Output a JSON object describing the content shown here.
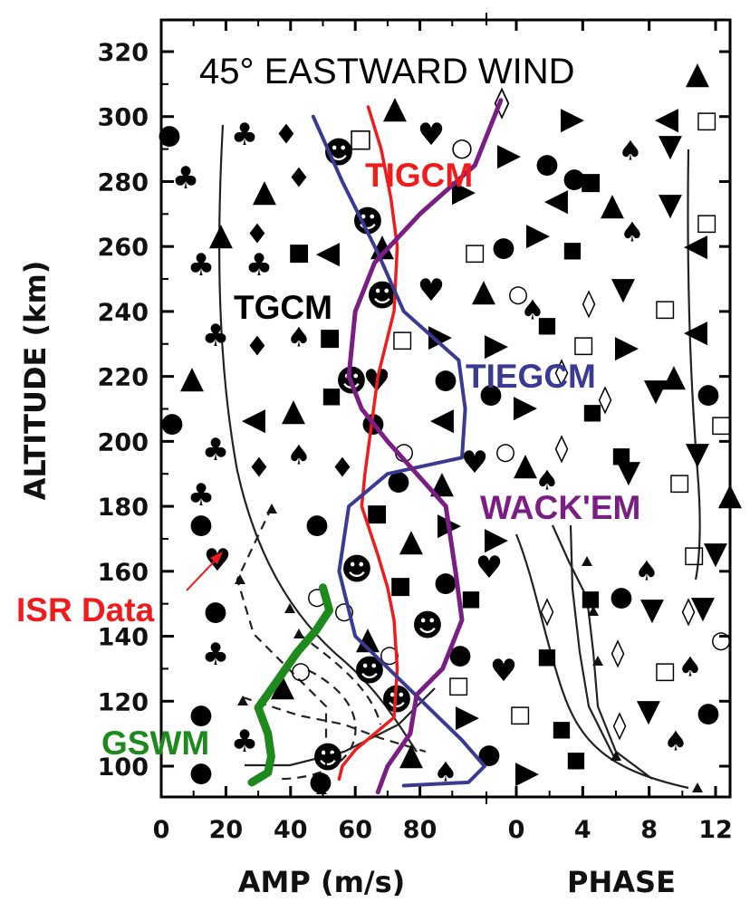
{
  "chart_data": {
    "type": "line",
    "title": "45° EASTWARD WIND",
    "ylabel": "ALTITUDE (km)",
    "ylim": [
      90,
      325
    ],
    "y_ticks": [
      100,
      120,
      140,
      160,
      180,
      200,
      220,
      240,
      260,
      280,
      300,
      320
    ],
    "amp_axis": {
      "label": "AMP (m/s)",
      "xlim": [
        0,
        100
      ],
      "ticks": [
        0,
        20,
        40,
        60,
        80
      ]
    },
    "phase_axis": {
      "label": "PHASE",
      "xlim": [
        -2,
        14
      ],
      "ticks": [
        0,
        4,
        8,
        12
      ]
    },
    "annotations": {
      "isr_data": "ISR Data"
    },
    "series": [
      {
        "name": "TIGCM",
        "color": "#ee1c1c",
        "panel": "amp",
        "points": [
          [
            55,
            96
          ],
          [
            56,
            100
          ],
          [
            60,
            105
          ],
          [
            72,
            115
          ],
          [
            73,
            130
          ],
          [
            72,
            145
          ],
          [
            70,
            155
          ],
          [
            67,
            165
          ],
          [
            62,
            180
          ],
          [
            63,
            190
          ],
          [
            65,
            205
          ],
          [
            67,
            220
          ],
          [
            72,
            240
          ],
          [
            73,
            260
          ],
          [
            71,
            275
          ],
          [
            68,
            290
          ],
          [
            64,
            303
          ]
        ]
      },
      {
        "name": "TIEGCM",
        "color": "#3a3a92",
        "panel": "amp",
        "points": [
          [
            75,
            94
          ],
          [
            95,
            95
          ],
          [
            100,
            100
          ],
          [
            93,
            108
          ],
          [
            60,
            140
          ],
          [
            55,
            160
          ],
          [
            58,
            180
          ],
          [
            70,
            190
          ],
          [
            93,
            195
          ],
          [
            94,
            210
          ],
          [
            92,
            225
          ],
          [
            75,
            240
          ],
          [
            67,
            258
          ],
          [
            56,
            280
          ],
          [
            47,
            300
          ]
        ]
      },
      {
        "name": "WACK'EM",
        "color": "#7a1e84",
        "panel": "amp",
        "points": [
          [
            67,
            92
          ],
          [
            70,
            100
          ],
          [
            77,
            110
          ],
          [
            79,
            122
          ],
          [
            87,
            130
          ],
          [
            93,
            145
          ],
          [
            91,
            160
          ],
          [
            88,
            180
          ],
          [
            70,
            200
          ],
          [
            62,
            210
          ],
          [
            58,
            220
          ],
          [
            60,
            240
          ],
          [
            66,
            255
          ],
          [
            80,
            270
          ],
          [
            97,
            285
          ],
          [
            105,
            305
          ]
        ]
      },
      {
        "name": "GSWM",
        "color": "#1e8a1e",
        "panel": "amp",
        "points": [
          [
            28,
            95
          ],
          [
            33,
            98
          ],
          [
            34,
            103
          ],
          [
            33,
            110
          ],
          [
            30,
            118
          ],
          [
            35,
            125
          ],
          [
            42,
            135
          ],
          [
            48,
            142
          ],
          [
            52,
            148
          ],
          [
            50,
            155
          ]
        ]
      }
    ],
    "model_labels": [
      "TIGCM",
      "TIEGCM",
      "WACK'EM",
      "GSWM",
      "TGCM"
    ]
  }
}
